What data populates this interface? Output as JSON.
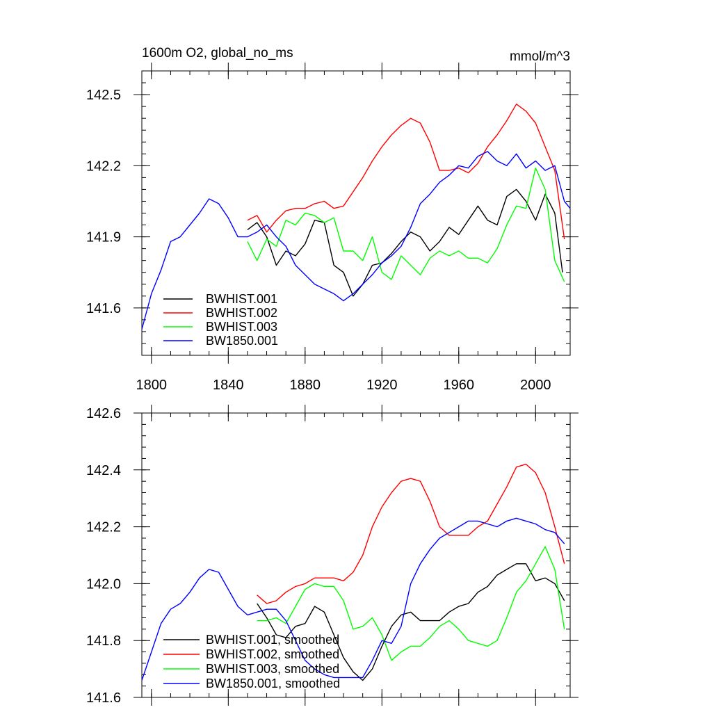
{
  "figure": {
    "title_left": "1600m O2, global_no_ms",
    "title_right": "mmol/m^3"
  },
  "chart_data": [
    {
      "type": "line",
      "title": "1600m O2, global_no_ms",
      "units": "mmol/m^3",
      "xlim": [
        1795,
        2018
      ],
      "ylim": [
        141.4,
        142.6
      ],
      "xticks": [
        1800,
        1840,
        1880,
        1920,
        1960,
        2000
      ],
      "xtick_labels": [
        "1800",
        "1840",
        "1880",
        "1920",
        "1960",
        "2000"
      ],
      "yticks": [
        141.6,
        141.9,
        142.2,
        142.5
      ],
      "ytick_labels": [
        "141.6",
        "141.9",
        "142.2",
        "142.5"
      ],
      "legend_position": "bottom-left",
      "series": [
        {
          "name": "BWHIST.001",
          "color": "#000000",
          "x": [
            1850,
            1855,
            1860,
            1865,
            1870,
            1875,
            1880,
            1885,
            1890,
            1895,
            1900,
            1905,
            1910,
            1915,
            1920,
            1925,
            1930,
            1935,
            1940,
            1945,
            1950,
            1955,
            1960,
            1965,
            1970,
            1975,
            1980,
            1985,
            1990,
            1995,
            2000,
            2005,
            2010,
            2014
          ],
          "y": [
            141.93,
            141.96,
            141.9,
            141.78,
            141.84,
            141.82,
            141.87,
            141.97,
            141.96,
            141.78,
            141.75,
            141.65,
            141.7,
            141.78,
            141.79,
            141.83,
            141.88,
            141.92,
            141.9,
            141.84,
            141.88,
            141.94,
            141.91,
            141.97,
            142.03,
            141.97,
            141.95,
            142.07,
            142.1,
            142.05,
            141.97,
            142.08,
            142.0,
            141.75
          ]
        },
        {
          "name": "BWHIST.002",
          "color": "#ff0000",
          "x": [
            1850,
            1855,
            1860,
            1865,
            1870,
            1875,
            1880,
            1885,
            1890,
            1895,
            1900,
            1905,
            1910,
            1915,
            1920,
            1925,
            1930,
            1935,
            1940,
            1945,
            1950,
            1955,
            1960,
            1965,
            1970,
            1975,
            1980,
            1985,
            1990,
            1995,
            2000,
            2005,
            2010,
            2015
          ],
          "y": [
            141.97,
            141.99,
            141.92,
            141.97,
            142.01,
            142.02,
            142.02,
            142.04,
            142.05,
            142.02,
            142.03,
            142.09,
            142.15,
            142.22,
            142.28,
            142.33,
            142.37,
            142.4,
            142.38,
            142.3,
            142.18,
            142.18,
            142.19,
            142.17,
            142.21,
            142.28,
            142.33,
            142.39,
            142.46,
            142.43,
            142.38,
            142.28,
            142.18,
            141.89
          ]
        },
        {
          "name": "BWHIST.003",
          "color": "#00ff00",
          "x": [
            1850,
            1855,
            1860,
            1865,
            1870,
            1875,
            1880,
            1885,
            1890,
            1895,
            1900,
            1905,
            1910,
            1915,
            1920,
            1925,
            1930,
            1935,
            1940,
            1945,
            1950,
            1955,
            1960,
            1965,
            1970,
            1975,
            1980,
            1985,
            1990,
            1995,
            2000,
            2005,
            2010,
            2015
          ],
          "y": [
            141.88,
            141.8,
            141.89,
            141.86,
            141.97,
            141.95,
            142.0,
            141.99,
            141.96,
            141.98,
            141.84,
            141.84,
            141.8,
            141.9,
            141.75,
            141.72,
            141.82,
            141.78,
            141.74,
            141.81,
            141.84,
            141.82,
            141.84,
            141.81,
            141.81,
            141.79,
            141.85,
            141.95,
            142.03,
            142.02,
            142.19,
            142.1,
            141.8,
            141.71
          ]
        },
        {
          "name": "BW1850.001",
          "color": "#0000ff",
          "x": [
            1795,
            1800,
            1805,
            1810,
            1815,
            1820,
            1825,
            1830,
            1835,
            1840,
            1845,
            1850,
            1855,
            1860,
            1865,
            1870,
            1875,
            1880,
            1885,
            1890,
            1895,
            1900,
            1905,
            1910,
            1915,
            1920,
            1925,
            1930,
            1935,
            1940,
            1945,
            1950,
            1955,
            1960,
            1965,
            1970,
            1975,
            1980,
            1985,
            1990,
            1995,
            2000,
            2005,
            2010,
            2015,
            2018
          ],
          "y": [
            141.51,
            141.66,
            141.76,
            141.88,
            141.9,
            141.95,
            142.0,
            142.06,
            142.04,
            141.98,
            141.9,
            141.9,
            141.92,
            141.95,
            141.9,
            141.86,
            141.78,
            141.74,
            141.7,
            141.68,
            141.66,
            141.63,
            141.66,
            141.7,
            141.74,
            141.79,
            141.82,
            141.86,
            141.94,
            142.04,
            142.08,
            142.13,
            142.16,
            142.2,
            142.19,
            142.24,
            142.26,
            142.22,
            142.2,
            142.25,
            142.19,
            142.22,
            142.18,
            142.2,
            142.05,
            142.02
          ]
        }
      ]
    },
    {
      "type": "line",
      "xlim": [
        1795,
        2018
      ],
      "ylim": [
        141.6,
        142.6
      ],
      "xticks": [
        1800,
        1840,
        1880,
        1920,
        1960,
        2000
      ],
      "yticks": [
        141.6,
        141.8,
        142.0,
        142.2,
        142.4,
        142.6
      ],
      "ytick_labels": [
        "141.6",
        "141.8",
        "142.0",
        "142.2",
        "142.4",
        "142.6"
      ],
      "legend_position": "bottom-left",
      "series": [
        {
          "name": "BWHIST.001, smoothed",
          "color": "#000000",
          "x": [
            1855,
            1860,
            1865,
            1870,
            1875,
            1880,
            1885,
            1890,
            1895,
            1900,
            1905,
            1910,
            1915,
            1920,
            1925,
            1930,
            1935,
            1940,
            1945,
            1950,
            1955,
            1960,
            1965,
            1970,
            1975,
            1980,
            1985,
            1990,
            1995,
            2000,
            2005,
            2010,
            2015
          ],
          "y": [
            141.93,
            141.88,
            141.82,
            141.81,
            141.85,
            141.86,
            141.92,
            141.9,
            141.82,
            141.74,
            141.69,
            141.66,
            141.7,
            141.78,
            141.85,
            141.89,
            141.9,
            141.87,
            141.87,
            141.87,
            141.9,
            141.92,
            141.93,
            141.97,
            141.99,
            142.03,
            142.05,
            142.07,
            142.07,
            142.01,
            142.02,
            142.0,
            141.94
          ]
        },
        {
          "name": "BWHIST.002, smoothed",
          "color": "#ff0000",
          "x": [
            1855,
            1860,
            1865,
            1870,
            1875,
            1880,
            1885,
            1890,
            1895,
            1900,
            1905,
            1910,
            1915,
            1920,
            1925,
            1930,
            1935,
            1940,
            1945,
            1950,
            1955,
            1960,
            1965,
            1970,
            1975,
            1980,
            1985,
            1990,
            1995,
            2000,
            2005,
            2010,
            2015
          ],
          "y": [
            141.96,
            141.93,
            141.94,
            141.97,
            141.99,
            142.0,
            142.02,
            142.02,
            142.02,
            142.01,
            142.04,
            142.1,
            142.2,
            142.27,
            142.32,
            142.36,
            142.37,
            142.36,
            142.29,
            142.2,
            142.17,
            142.17,
            142.17,
            142.2,
            142.22,
            142.28,
            142.34,
            142.41,
            142.42,
            142.39,
            142.32,
            142.2,
            142.07
          ]
        },
        {
          "name": "BWHIST.003, smoothed",
          "color": "#00ff00",
          "x": [
            1855,
            1860,
            1865,
            1870,
            1875,
            1880,
            1885,
            1890,
            1895,
            1900,
            1905,
            1910,
            1915,
            1920,
            1925,
            1930,
            1935,
            1940,
            1945,
            1950,
            1955,
            1960,
            1965,
            1970,
            1975,
            1980,
            1985,
            1990,
            1995,
            2000,
            2005,
            2010,
            2015
          ],
          "y": [
            141.87,
            141.87,
            141.88,
            141.86,
            141.92,
            141.98,
            142.0,
            141.99,
            141.99,
            141.94,
            141.84,
            141.85,
            141.88,
            141.82,
            141.73,
            141.76,
            141.78,
            141.78,
            141.81,
            141.85,
            141.87,
            141.84,
            141.8,
            141.79,
            141.78,
            141.8,
            141.88,
            141.97,
            142.01,
            142.07,
            142.13,
            142.05,
            141.84
          ]
        },
        {
          "name": "BW1850.001, smoothed",
          "color": "#0000ff",
          "x": [
            1795,
            1800,
            1805,
            1810,
            1815,
            1820,
            1825,
            1830,
            1835,
            1840,
            1845,
            1850,
            1855,
            1860,
            1865,
            1870,
            1875,
            1880,
            1885,
            1890,
            1895,
            1900,
            1905,
            1910,
            1915,
            1920,
            1925,
            1930,
            1935,
            1940,
            1945,
            1950,
            1955,
            1960,
            1965,
            1970,
            1975,
            1980,
            1985,
            1990,
            1995,
            2000,
            2005,
            2010,
            2015
          ],
          "y": [
            141.66,
            141.76,
            141.86,
            141.91,
            141.93,
            141.97,
            142.02,
            142.05,
            142.04,
            141.98,
            141.92,
            141.89,
            141.9,
            141.91,
            141.91,
            141.87,
            141.8,
            141.73,
            141.7,
            141.68,
            141.67,
            141.67,
            141.67,
            141.67,
            141.73,
            141.8,
            141.79,
            141.85,
            142.0,
            142.07,
            142.12,
            142.16,
            142.18,
            142.2,
            142.22,
            142.22,
            142.21,
            142.2,
            142.22,
            142.23,
            142.22,
            142.21,
            142.19,
            142.18,
            142.14
          ]
        }
      ]
    }
  ]
}
